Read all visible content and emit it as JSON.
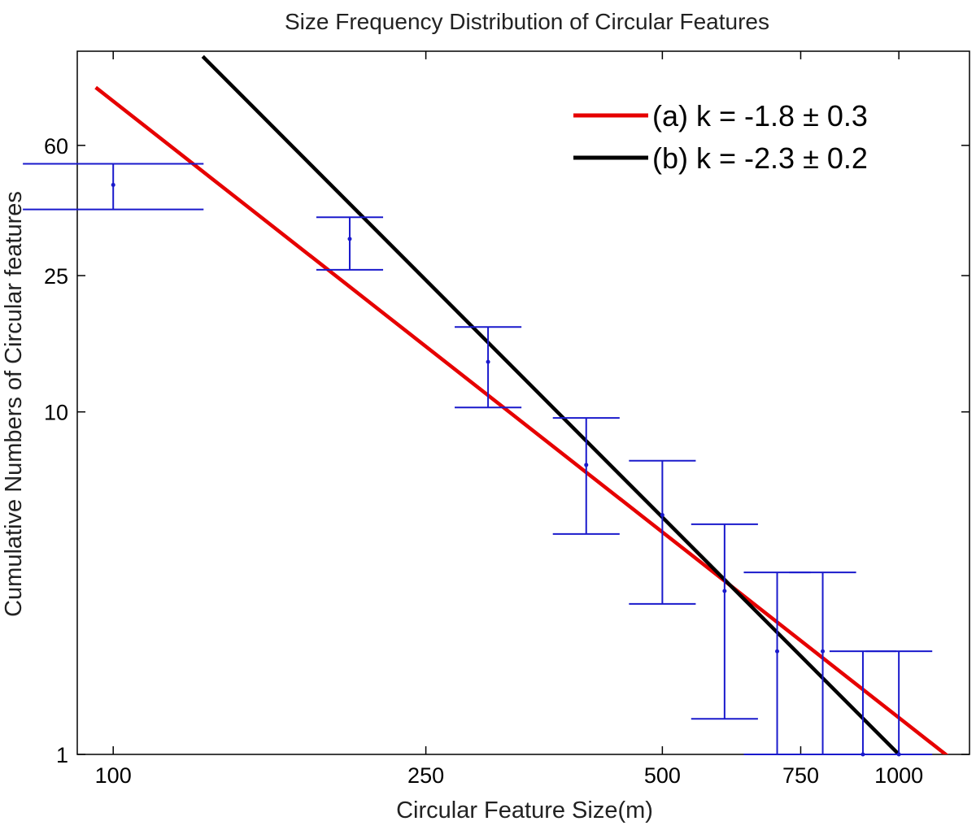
{
  "chart_data": {
    "type": "scatter",
    "title": "Size Frequency Distribution of Circular Features",
    "xlabel": "Circular Feature Size(m)",
    "ylabel": "Cumulative Numbers of Circular features",
    "xscale": "log",
    "yscale": "log",
    "xlim": [
      90,
      1230
    ],
    "ylim": [
      1,
      113
    ],
    "grid": false,
    "legend_position": "top-right",
    "x_ticks": [
      {
        "value": 100,
        "label": "100"
      },
      {
        "value": 250,
        "label": "250"
      },
      {
        "value": 500,
        "label": "500"
      },
      {
        "value": 750,
        "label": "750"
      },
      {
        "value": 1000,
        "label": "1000"
      }
    ],
    "y_ticks": [
      {
        "value": 1,
        "label": "1"
      },
      {
        "value": 10,
        "label": "10"
      },
      {
        "value": 25,
        "label": "25"
      },
      {
        "value": 60,
        "label": "60"
      }
    ],
    "points": [
      {
        "x": 100,
        "y": 46,
        "err_low": 39,
        "err_high": 53,
        "cap_width": 0.23
      },
      {
        "x": 200,
        "y": 32,
        "err_low": 26,
        "err_high": 37,
        "cap_width": 0.085
      },
      {
        "x": 300,
        "y": 14,
        "err_low": 10.3,
        "err_high": 17.7,
        "cap_width": 0.085
      },
      {
        "x": 400,
        "y": 7.0,
        "err_low": 4.4,
        "err_high": 9.6,
        "cap_width": 0.085
      },
      {
        "x": 500,
        "y": 5.0,
        "err_low": 2.75,
        "err_high": 7.2,
        "cap_width": 0.085
      },
      {
        "x": 600,
        "y": 3.0,
        "err_low": 1.27,
        "err_high": 4.7,
        "cap_width": 0.085
      },
      {
        "x": 700,
        "y": 2.0,
        "err_low": 1.0,
        "err_high": 3.4,
        "cap_width": 0.085
      },
      {
        "x": 800,
        "y": 2.0,
        "err_low": 1.0,
        "err_high": 3.4,
        "cap_width": 0.085
      },
      {
        "x": 900,
        "y": 1.0,
        "err_low": 1.0,
        "err_high": 2.0,
        "cap_width": 0.085
      },
      {
        "x": 1000,
        "y": 1.0,
        "err_low": 1.0,
        "err_high": 2.0,
        "cap_width": 0.085
      }
    ],
    "series": [
      {
        "name": "(a) k = -1.8 ± 0.3",
        "type": "power-fit",
        "color": "#e60000",
        "k": -1.8,
        "ref_x": 1000,
        "ref_y": 1.28,
        "x_range": [
          95,
          1160
        ]
      },
      {
        "name": "(b) k = -2.3 ± 0.2",
        "type": "power-fit",
        "color": "#000000",
        "k": -2.3,
        "ref_x": 1000,
        "ref_y": 1.0,
        "x_range": [
          130,
          1000
        ]
      }
    ],
    "errorbar_color": "#1a1acc"
  }
}
